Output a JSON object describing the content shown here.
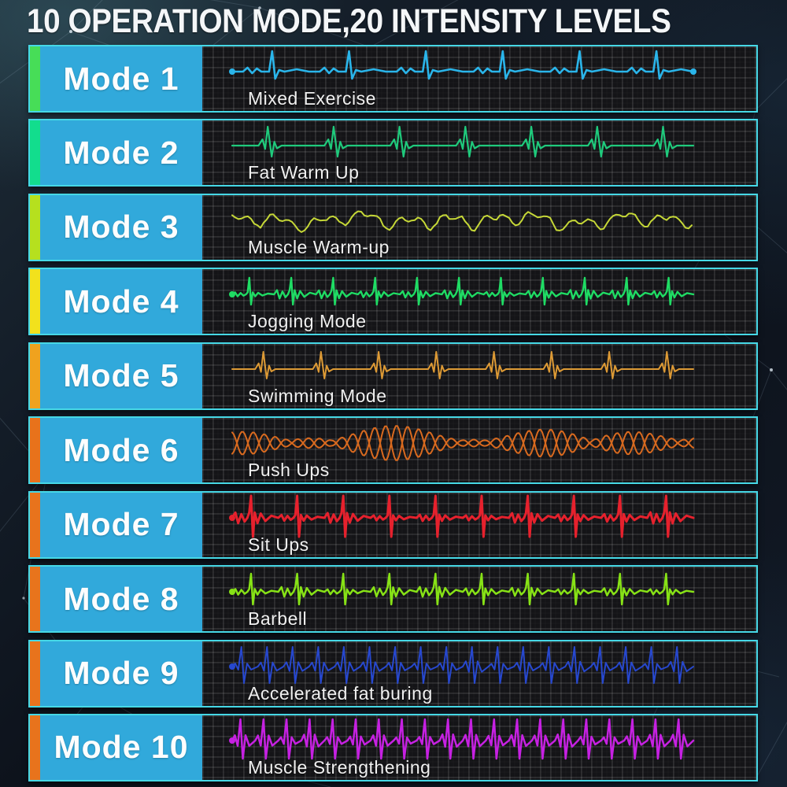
{
  "title": "10 OPERATION MODE,20 INTENSITY LEVELS",
  "theme": {
    "row_border": "#46d8e6",
    "label_bg": "#31a9db",
    "panel_bg": "#141417",
    "title_color": "#f4f6f8"
  },
  "modes": [
    {
      "label": "Mode 1",
      "exercise": "Mixed Exercise",
      "accent_color": "#47dd57",
      "wave": {
        "color": "#2ab5ea",
        "style": "pulse",
        "cycles": 6,
        "up": 26,
        "down": 9,
        "stroke": 2.6,
        "dots": "both"
      }
    },
    {
      "label": "Mode 2",
      "exercise": "Fat Warm Up",
      "accent_color": "#12dd8d",
      "wave": {
        "color": "#1fca7c",
        "style": "burst",
        "cycles": 7,
        "up": 24,
        "down": 14,
        "stroke": 2.2,
        "dots": "none"
      }
    },
    {
      "label": "Mode 3",
      "exercise": "Muscle Warm-up",
      "accent_color": "#b6e01e",
      "wave": {
        "color": "#c6d837",
        "style": "wiggle",
        "cycles": 0,
        "up": 14,
        "down": 14,
        "stroke": 2,
        "dots": "none"
      }
    },
    {
      "label": "Mode 4",
      "exercise": "Jogging Mode",
      "accent_color": "#f2e11c",
      "wave": {
        "color": "#1fdc64",
        "style": "spikes",
        "cycles": 11,
        "up": 21,
        "down": 13,
        "noise": 4,
        "stroke": 2.4,
        "dots": "start"
      }
    },
    {
      "label": "Mode 5",
      "exercise": "Swimming Mode",
      "accent_color": "#f0a21e",
      "wave": {
        "color": "#dd9a35",
        "style": "burst",
        "cycles": 8,
        "up": 22,
        "down": 12,
        "stroke": 2,
        "dots": "none"
      }
    },
    {
      "label": "Mode 6",
      "exercise": "Push Ups",
      "accent_color": "#e8721b",
      "wave": {
        "color": "#d96a1f",
        "style": "spindle",
        "cycles": 0,
        "up": 22,
        "down": 22,
        "stroke": 2,
        "dots": "none"
      }
    },
    {
      "label": "Mode 7",
      "exercise": "Sit Ups",
      "accent_color": "#e8731c",
      "wave": {
        "color": "#e6212d",
        "style": "spikes",
        "cycles": 10,
        "up": 28,
        "down": 24,
        "noise": 5,
        "stroke": 3,
        "dots": "start"
      }
    },
    {
      "label": "Mode 8",
      "exercise": "Barbell",
      "accent_color": "#e8741c",
      "wave": {
        "color": "#87e216",
        "style": "spikes",
        "cycles": 10,
        "up": 23,
        "down": 16,
        "noise": 4.5,
        "stroke": 2.5,
        "dots": "start"
      }
    },
    {
      "label": "Mode 9",
      "exercise": "Accelerated fat buring",
      "accent_color": "#e8731c",
      "wave": {
        "color": "#2748cf",
        "style": "spikes",
        "cycles": 18,
        "up": 25,
        "down": 21,
        "noise": 5,
        "stroke": 2,
        "dots": "start"
      }
    },
    {
      "label": "Mode 10",
      "exercise": "Muscle Strengthening",
      "accent_color": "#e8731c",
      "wave": {
        "color": "#c621e2",
        "style": "spikes",
        "cycles": 20,
        "up": 27,
        "down": 23,
        "noise": 6,
        "stroke": 2.5,
        "dots": "start"
      }
    }
  ]
}
